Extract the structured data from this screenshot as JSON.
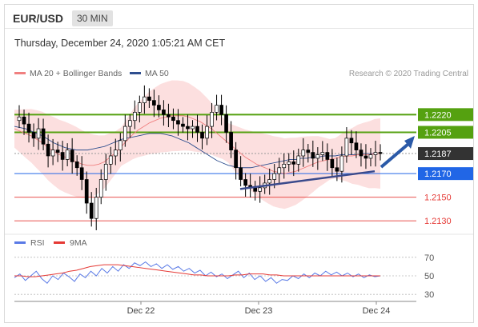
{
  "header": {
    "pair": "EUR/USD",
    "timeframe": "30 MIN",
    "datetime": "Thursday, December 24, 2020 1:05:21 AM CET"
  },
  "legend": {
    "ma20": "MA 20 + Bollinger Bands",
    "ma50": "MA 50",
    "credit": "Research © 2020 Trading Central"
  },
  "colors": {
    "ma20": "#f08080",
    "ma50": "#2f4f8f",
    "band": "#fcd9d9",
    "up": "#ffffff",
    "down": "#000000",
    "green": "#55a110",
    "blue": "#2166e6",
    "red": "#e53935",
    "rsi": "#5a7ae6",
    "rsi_ma": "#e53935"
  },
  "chart_data": [
    {
      "type": "candlestick",
      "ylim": [
        1.2122,
        1.2248
      ],
      "x_ticks": [
        "Dec 22",
        "Dec 23",
        "Dec 24"
      ],
      "levels": [
        {
          "value": 1.222,
          "label": "1.2220",
          "kind": "resistance",
          "color": "green"
        },
        {
          "value": 1.2205,
          "label": "1.2205",
          "kind": "resistance",
          "color": "green"
        },
        {
          "value": 1.2187,
          "label": "1.2187",
          "kind": "last",
          "color": "dark"
        },
        {
          "value": 1.217,
          "label": "1.2170",
          "kind": "pivot",
          "color": "blue"
        },
        {
          "value": 1.215,
          "label": "1.2150",
          "kind": "support",
          "color": "red"
        },
        {
          "value": 1.213,
          "label": "1.2130",
          "kind": "support",
          "color": "red"
        }
      ],
      "closes": [
        1.2215,
        1.2218,
        1.2212,
        1.2205,
        1.22,
        1.2208,
        1.2195,
        1.2185,
        1.219,
        1.2188,
        1.2182,
        1.219,
        1.218,
        1.2175,
        1.2165,
        1.2145,
        1.2132,
        1.215,
        1.2165,
        1.2178,
        1.2185,
        1.219,
        1.2198,
        1.221,
        1.2215,
        1.2222,
        1.223,
        1.2235,
        1.2232,
        1.2228,
        1.2224,
        1.222,
        1.2218,
        1.2215,
        1.2212,
        1.221,
        1.2208,
        1.221,
        1.2205,
        1.22,
        1.221,
        1.2222,
        1.2228,
        1.222,
        1.2205,
        1.219,
        1.2175,
        1.2165,
        1.216,
        1.2158,
        1.2155,
        1.2158,
        1.2162,
        1.2165,
        1.217,
        1.2175,
        1.2178,
        1.218,
        1.2178,
        1.2185,
        1.219,
        1.2188,
        1.2183,
        1.2186,
        1.2188,
        1.2182,
        1.2175,
        1.2172,
        1.2185,
        1.22,
        1.2196,
        1.219,
        1.2185,
        1.2183,
        1.2186,
        1.2188,
        1.2187
      ],
      "ma20": [
        1.2208,
        1.2206,
        1.2204,
        1.2202,
        1.2199,
        1.2196,
        1.2192,
        1.2189,
        1.2186,
        1.2184,
        1.2182,
        1.218,
        1.2178,
        1.2177,
        1.2177,
        1.2178,
        1.218,
        1.2184,
        1.2188,
        1.2193,
        1.2198,
        1.2203,
        1.2207,
        1.221,
        1.2213,
        1.2215,
        1.2217,
        1.2218,
        1.2219,
        1.2219,
        1.2219,
        1.2218,
        1.2216,
        1.2214,
        1.2211,
        1.2208,
        1.2204,
        1.22,
        1.2196,
        1.2192,
        1.2188,
        1.2184,
        1.2181,
        1.2178,
        1.2176,
        1.2174,
        1.2172,
        1.2171,
        1.217,
        1.2171,
        1.2172,
        1.2174,
        1.2176,
        1.2178,
        1.218,
        1.2181,
        1.2182,
        1.2183,
        1.2184,
        1.2185,
        1.2185,
        1.2186,
        1.2186,
        1.2186,
        1.2187,
        1.2187
      ],
      "ma50": [
        1.221,
        1.2209,
        1.2208,
        1.2206,
        1.2204,
        1.2202,
        1.2199,
        1.2196,
        1.2194,
        1.2192,
        1.2191,
        1.219,
        1.219,
        1.219,
        1.2191,
        1.2192,
        1.2193,
        1.2195,
        1.2197,
        1.2199,
        1.22,
        1.2201,
        1.2202,
        1.2203,
        1.2204,
        1.2204,
        1.2204,
        1.2203,
        1.2202,
        1.22,
        1.2198,
        1.2196,
        1.2193,
        1.219,
        1.2187,
        1.2184,
        1.2181,
        1.2179,
        1.2177,
        1.2176,
        1.2175,
        1.2175,
        1.2175,
        1.2176,
        1.2177,
        1.2178,
        1.2179,
        1.218,
        1.2181,
        1.2182,
        1.2182,
        1.2183,
        1.2183,
        1.2184,
        1.2184,
        1.2185,
        1.2185,
        1.2185,
        1.2186,
        1.2186,
        1.2186,
        1.2186,
        1.2187,
        1.2187,
        1.2187,
        1.2187
      ]
    },
    {
      "type": "line",
      "legend": [
        "RSI",
        "9MA"
      ],
      "y_ticks": [
        70,
        50,
        30
      ],
      "ylim": [
        25,
        75
      ],
      "rsi": [
        48,
        52,
        45,
        50,
        55,
        47,
        42,
        50,
        46,
        53,
        49,
        44,
        52,
        48,
        55,
        50,
        58,
        53,
        60,
        55,
        62,
        58,
        64,
        61,
        65,
        60,
        63,
        58,
        62,
        57,
        60,
        55,
        58,
        53,
        56,
        50,
        54,
        49,
        52,
        47,
        51,
        55,
        48,
        53,
        46,
        50,
        44,
        48,
        42,
        46,
        45,
        50,
        47,
        52,
        48,
        53,
        50,
        55,
        51,
        54,
        50,
        53,
        49,
        52,
        48,
        51,
        49,
        50
      ],
      "rsi_ma": [
        50,
        50,
        49,
        49,
        50,
        51,
        52,
        53,
        55,
        56,
        58,
        60,
        61,
        62,
        62,
        62,
        61,
        60,
        59,
        58,
        57,
        56,
        55,
        54,
        53,
        52,
        51,
        51,
        50,
        50,
        50,
        50,
        51,
        51,
        52,
        52,
        52,
        51,
        51,
        50,
        50,
        50,
        50,
        50,
        50,
        50,
        50,
        50,
        50,
        50,
        50,
        50,
        50,
        50
      ]
    }
  ]
}
